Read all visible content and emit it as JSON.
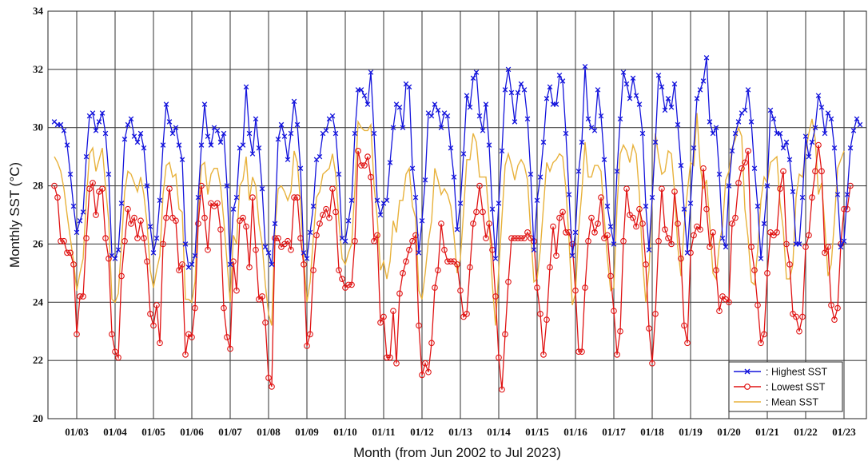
{
  "chart_data": {
    "type": "line",
    "xlabel": "Month (from Jun 2002 to Jul 2023)",
    "ylabel": "Monthly SST (°C)",
    "ylim": [
      20,
      34
    ],
    "yticks": [
      20,
      22,
      24,
      26,
      28,
      30,
      32,
      34
    ],
    "x_start": "2002-06",
    "x_end": "2023-07",
    "xtick_labels": [
      "01/03",
      "01/04",
      "01/05",
      "01/06",
      "01/07",
      "01/08",
      "01/09",
      "01/10",
      "01/11",
      "01/12",
      "01/13",
      "01/14",
      "01/15",
      "01/16",
      "01/17",
      "01/18",
      "01/19",
      "01/20",
      "01/21",
      "01/22",
      "01/23"
    ],
    "grid": true,
    "legend_position": "bottom-right",
    "colors": {
      "highest": "#1414dc",
      "lowest": "#e01414",
      "mean": "#e8b23c"
    },
    "series": [
      {
        "name": "Highest SST",
        "marker": "x",
        "values": [
          30.2,
          30.1,
          30.1,
          29.9,
          29.4,
          28.4,
          27.3,
          26.4,
          26.8,
          27.1,
          29.0,
          30.4,
          30.5,
          29.9,
          30.2,
          30.5,
          29.8,
          28.4,
          25.6,
          25.5,
          25.8,
          27.4,
          29.6,
          30.1,
          30.3,
          29.7,
          29.5,
          29.8,
          29.3,
          28.0,
          26.6,
          25.7,
          26.2,
          27.5,
          29.4,
          30.8,
          30.2,
          29.8,
          30.0,
          29.4,
          28.9,
          26.0,
          25.2,
          25.3,
          25.6,
          27.6,
          29.4,
          30.8,
          29.7,
          29.4,
          30.0,
          29.9,
          29.5,
          29.8,
          28.0,
          25.3,
          27.2,
          27.6,
          29.3,
          29.4,
          31.4,
          29.8,
          29.1,
          30.3,
          29.3,
          27.9,
          25.9,
          25.7,
          25.3,
          26.7,
          29.6,
          30.1,
          29.7,
          28.9,
          29.8,
          30.9,
          30.1,
          28.6,
          25.7,
          25.5,
          26.4,
          27.3,
          28.9,
          29.0,
          29.8,
          29.9,
          30.3,
          30.4,
          29.8,
          28.4,
          26.2,
          26.1,
          26.8,
          27.5,
          29.8,
          31.3,
          31.3,
          31.1,
          30.8,
          31.9,
          29.8,
          27.5,
          27.0,
          27.4,
          27.5,
          28.8,
          30.0,
          30.8,
          30.7,
          30.0,
          31.5,
          31.4,
          28.6,
          27.6,
          25.7,
          26.8,
          28.2,
          30.5,
          30.4,
          30.8,
          30.6,
          30.0,
          30.5,
          30.4,
          29.3,
          28.3,
          26.5,
          27.4,
          29.1,
          31.1,
          30.7,
          31.7,
          31.9,
          30.4,
          29.9,
          30.8,
          29.4,
          27.2,
          25.5,
          27.4,
          29.2,
          31.3,
          32.0,
          31.2,
          30.2,
          31.2,
          31.5,
          31.3,
          30.3,
          28.4,
          25.8,
          27.5,
          28.3,
          29.5,
          31.0,
          31.4,
          30.8,
          30.8,
          31.8,
          31.6,
          29.8,
          27.7,
          25.6,
          26.4,
          28.5,
          29.5,
          32.1,
          30.3,
          30.0,
          29.9,
          31.3,
          30.4,
          28.9,
          27.3,
          26.6,
          26.0,
          28.5,
          30.3,
          31.9,
          31.5,
          31.0,
          31.7,
          31.1,
          30.8,
          29.8,
          27.3,
          25.8,
          27.6,
          29.5,
          31.8,
          31.4,
          30.6,
          31.0,
          30.7,
          31.5,
          30.1,
          28.7,
          27.2,
          25.7,
          27.4,
          29.3,
          31.0,
          31.3,
          31.6,
          32.4,
          30.2,
          29.8,
          30.0,
          28.4,
          26.2,
          25.9,
          28.0,
          29.2,
          29.8,
          30.2,
          30.5,
          30.6,
          31.3,
          30.2,
          28.6,
          27.3,
          25.5,
          26.7,
          28.0,
          30.6,
          30.3,
          29.8,
          29.8,
          29.3,
          29.5,
          28.9,
          27.8,
          26.0,
          26.0,
          27.6,
          29.7,
          29.0,
          29.5,
          30.0,
          31.1,
          30.7,
          29.8,
          30.5,
          30.3,
          29.3,
          27.7,
          25.9,
          26.1,
          27.7,
          29.3,
          29.9,
          30.3,
          30.1
        ]
      },
      {
        "name": "Lowest SST",
        "marker": "o",
        "values": [
          28.0,
          27.6,
          26.1,
          26.1,
          25.7,
          25.7,
          25.3,
          22.9,
          24.2,
          24.2,
          26.2,
          27.9,
          28.1,
          27.0,
          27.8,
          27.9,
          26.2,
          25.5,
          22.9,
          22.3,
          22.1,
          24.9,
          26.1,
          27.2,
          26.7,
          26.9,
          26.2,
          26.8,
          26.2,
          25.4,
          23.6,
          23.2,
          23.9,
          22.6,
          26.0,
          26.9,
          27.9,
          26.9,
          26.8,
          25.1,
          25.3,
          22.2,
          22.9,
          22.8,
          23.8,
          26.7,
          28.0,
          26.9,
          25.8,
          27.4,
          27.3,
          27.4,
          26.5,
          23.8,
          22.8,
          22.4,
          25.4,
          24.4,
          26.8,
          26.9,
          26.6,
          25.2,
          27.6,
          25.8,
          24.1,
          24.2,
          23.3,
          21.4,
          21.1,
          26.2,
          26.2,
          25.9,
          26.0,
          26.1,
          25.8,
          27.6,
          27.6,
          26.2,
          25.3,
          22.5,
          22.9,
          25.1,
          26.3,
          26.7,
          27.0,
          27.2,
          26.9,
          27.9,
          27.1,
          25.1,
          24.8,
          24.5,
          24.6,
          24.6,
          26.1,
          29.2,
          28.7,
          28.7,
          29.0,
          28.3,
          26.1,
          26.3,
          23.3,
          23.5,
          22.1,
          22.1,
          23.7,
          21.9,
          24.3,
          25.0,
          25.4,
          25.8,
          26.1,
          26.3,
          23.2,
          21.5,
          21.9,
          21.6,
          22.6,
          24.5,
          25.1,
          26.7,
          25.8,
          25.4,
          25.4,
          25.4,
          25.3,
          24.4,
          23.5,
          23.6,
          25.2,
          26.7,
          27.1,
          28.0,
          27.1,
          26.2,
          26.7,
          25.8,
          24.2,
          22.1,
          21.0,
          22.9,
          24.7,
          26.2,
          26.2,
          26.2,
          26.2,
          26.2,
          26.4,
          26.2,
          26.1,
          24.5,
          23.6,
          22.2,
          23.4,
          25.2,
          26.6,
          25.6,
          26.9,
          27.1,
          26.4,
          26.4,
          26.0,
          24.4,
          22.3,
          22.3,
          24.5,
          26.1,
          26.9,
          26.4,
          26.7,
          27.6,
          26.2,
          26.3,
          24.9,
          23.7,
          22.2,
          23.0,
          26.1,
          27.9,
          27.0,
          26.9,
          26.6,
          27.2,
          26.7,
          25.3,
          23.1,
          21.9,
          23.6,
          26.1,
          27.9,
          26.5,
          26.2,
          26.0,
          27.8,
          26.7,
          25.5,
          23.2,
          22.6,
          25.7,
          26.3,
          26.6,
          26.5,
          28.6,
          27.2,
          25.9,
          26.4,
          25.1,
          23.7,
          24.2,
          24.1,
          24.0,
          26.7,
          26.9,
          28.1,
          28.6,
          28.8,
          29.2,
          25.9,
          25.1,
          23.9,
          22.6,
          22.9,
          25.0,
          26.4,
          26.3,
          26.4,
          27.9,
          28.5,
          26.0,
          25.3,
          23.6,
          23.5,
          23.0,
          23.5,
          25.9,
          26.3,
          27.6,
          28.5,
          29.4,
          28.5,
          25.7,
          25.9,
          23.9,
          23.4,
          23.8,
          26.0,
          27.2,
          27.2,
          28.0
        ]
      },
      {
        "name": "Mean SST",
        "marker": "none",
        "values": [
          29.0,
          28.8,
          28.5,
          27.9,
          27.0,
          26.2,
          25.4,
          24.4,
          25.0,
          25.5,
          27.5,
          29.1,
          29.3,
          28.5,
          28.9,
          29.3,
          28.0,
          26.8,
          24.1,
          24.0,
          24.3,
          26.0,
          27.8,
          28.5,
          28.4,
          28.1,
          27.8,
          28.3,
          27.7,
          26.7,
          25.1,
          24.5,
          25.1,
          25.6,
          27.7,
          28.7,
          28.8,
          28.3,
          28.4,
          27.2,
          27.1,
          24.1,
          24.1,
          24.0,
          24.7,
          27.1,
          28.7,
          28.8,
          27.7,
          28.4,
          28.6,
          28.6,
          28.0,
          26.8,
          25.4,
          24.0,
          26.3,
          26.0,
          28.0,
          28.2,
          29.0,
          27.5,
          28.3,
          28.0,
          26.7,
          26.0,
          24.6,
          23.6,
          23.2,
          26.5,
          27.9,
          28.0,
          27.8,
          27.5,
          27.8,
          29.2,
          28.8,
          27.4,
          25.5,
          24.0,
          24.7,
          26.2,
          27.6,
          27.8,
          28.4,
          28.5,
          28.6,
          29.1,
          28.4,
          26.8,
          25.5,
          25.3,
          25.7,
          26.0,
          27.9,
          30.2,
          30.0,
          29.9,
          29.9,
          30.1,
          28.0,
          26.9,
          25.1,
          25.4,
          24.8,
          25.4,
          26.8,
          26.4,
          27.5,
          27.5,
          28.4,
          28.6,
          27.3,
          26.9,
          24.4,
          24.1,
          25.0,
          26.1,
          26.8,
          28.6,
          28.2,
          27.7,
          27.9,
          27.7,
          27.3,
          26.3,
          25.0,
          25.5,
          27.1,
          28.9,
          28.9,
          29.8,
          29.5,
          28.3,
          28.3,
          28.3,
          26.8,
          24.6,
          23.2,
          25.1,
          26.9,
          28.7,
          29.1,
          28.7,
          28.2,
          28.7,
          28.9,
          28.7,
          28.2,
          26.4,
          24.7,
          24.8,
          25.8,
          27.3,
          28.8,
          28.5,
          28.8,
          28.9,
          29.1,
          29.0,
          27.9,
          26.1,
          23.9,
          24.3,
          26.5,
          27.8,
          29.5,
          28.3,
          28.3,
          28.7,
          28.7,
          28.5,
          26.9,
          25.5,
          24.4,
          24.5,
          27.3,
          29.1,
          29.4,
          29.2,
          28.8,
          29.4,
          29.1,
          27.7,
          25.4,
          24.0,
          25.1,
          27.5,
          29.8,
          29.0,
          28.4,
          28.5,
          29.2,
          29.1,
          27.8,
          25.9,
          24.9,
          26.6,
          27.8,
          28.8,
          28.7,
          30.5,
          28.7,
          27.9,
          28.2,
          26.7,
          25.0,
          24.8,
          26.0,
          26.6,
          28.2,
          28.5,
          29.3,
          29.6,
          30.0,
          29.7,
          27.2,
          26.2,
          24.7,
          24.6,
          25.8,
          27.5,
          28.3,
          28.1,
          28.8,
          28.9,
          29.0,
          27.4,
          26.5,
          24.8,
          24.8,
          25.3,
          27.6,
          28.4,
          28.3,
          29.2,
          29.8,
          30.3,
          29.6,
          27.7,
          28.1,
          26.6,
          24.9,
          25.3,
          26.8,
          28.6,
          28.9,
          29.2
        ]
      }
    ]
  }
}
